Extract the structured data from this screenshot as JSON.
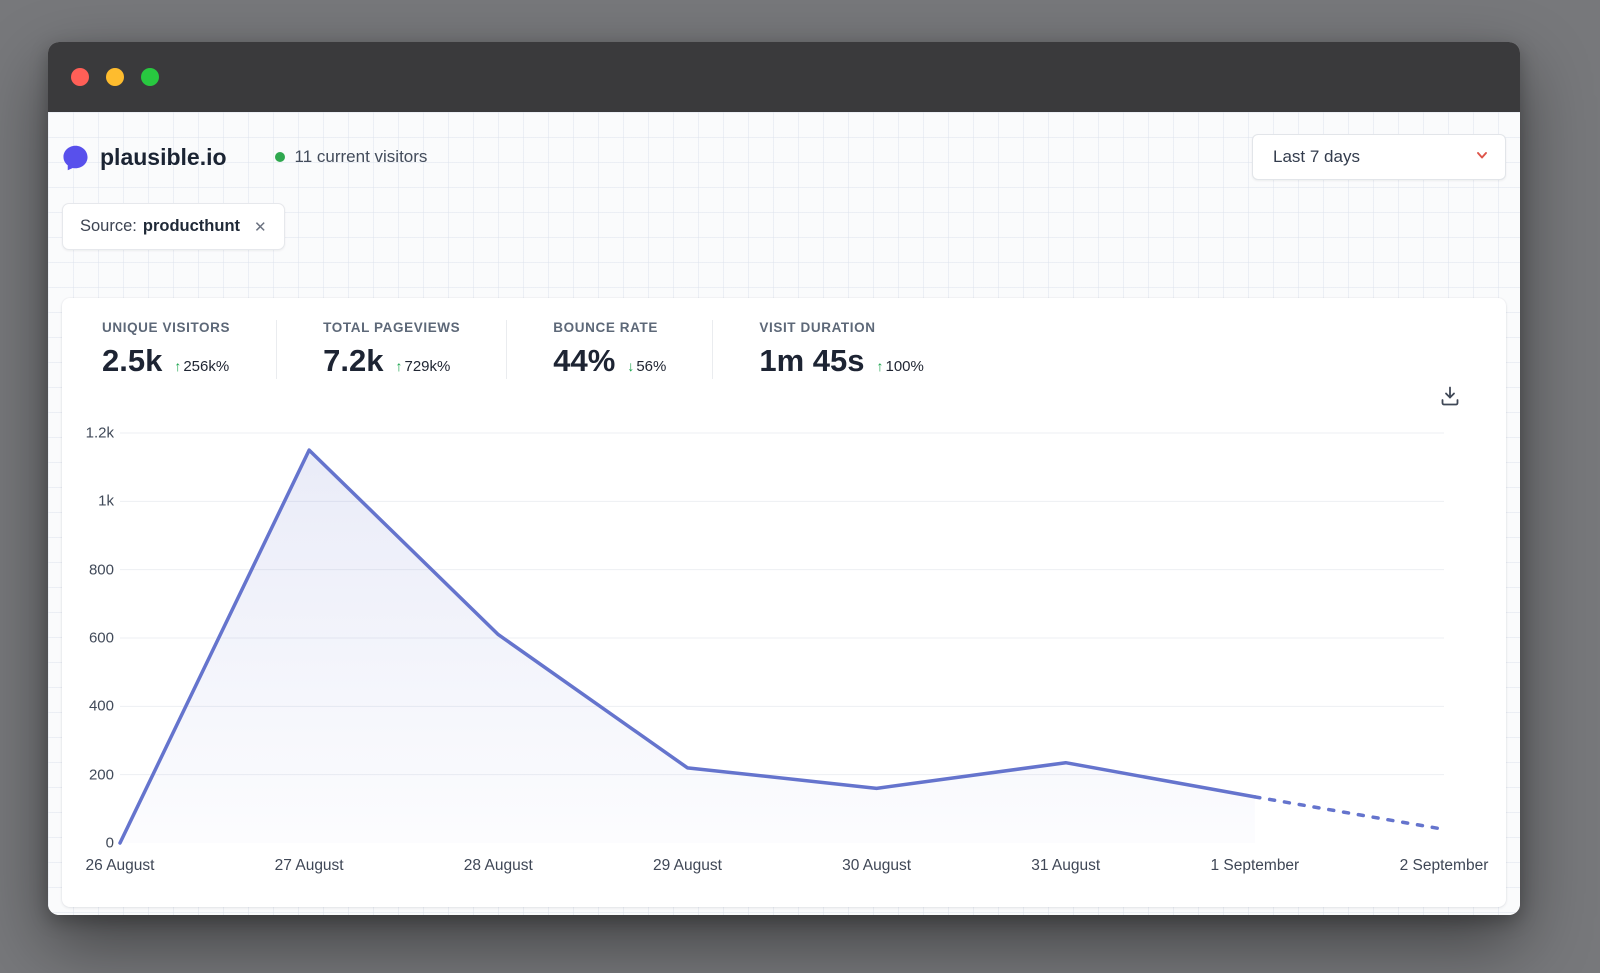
{
  "window": {
    "traffic_lights": [
      {
        "name": "close",
        "color": "#ff5f57"
      },
      {
        "name": "minimize",
        "color": "#febc2e"
      },
      {
        "name": "zoom",
        "color": "#28c840"
      }
    ]
  },
  "header": {
    "site_name": "plausible.io",
    "current_visitors": "11 current visitors",
    "date_range": "Last 7 days"
  },
  "filter_chip": {
    "label": "Source:",
    "value": "producthunt",
    "remove_glyph": "✕"
  },
  "stats": [
    {
      "label": "UNIQUE VISITORS",
      "value": "2.5k",
      "delta": "256k%",
      "direction": "up"
    },
    {
      "label": "TOTAL PAGEVIEWS",
      "value": "7.2k",
      "delta": "729k%",
      "direction": "up"
    },
    {
      "label": "BOUNCE RATE",
      "value": "44%",
      "delta": "56%",
      "direction": "down"
    },
    {
      "label": "VISIT DURATION",
      "value": "1m 45s",
      "delta": "100%",
      "direction": "up"
    }
  ],
  "chart_data": {
    "type": "line",
    "title": "",
    "xlabel": "",
    "ylabel": "",
    "x": [
      "26 August",
      "27 August",
      "28 August",
      "29 August",
      "30 August",
      "31 August",
      "1 September",
      "2 September"
    ],
    "values": [
      0,
      1150,
      610,
      220,
      160,
      235,
      135,
      40
    ],
    "dashed_from_index": 6,
    "y_ticks": [
      "0",
      "200",
      "400",
      "600",
      "800",
      "1k",
      "1.2k"
    ],
    "y_tick_values": [
      0,
      200,
      400,
      600,
      800,
      1000,
      1200
    ],
    "ylim": [
      0,
      1200
    ],
    "grid": true,
    "legend_position": "none",
    "line_color": "#6574cd",
    "grid_color": "#edeff3"
  },
  "colors": {
    "accent": "#5850ec",
    "positive": "#16a34a",
    "visitors_dot": "#2fa84f",
    "chevron": "#de5449",
    "titlebar": "#3a3a3c"
  }
}
